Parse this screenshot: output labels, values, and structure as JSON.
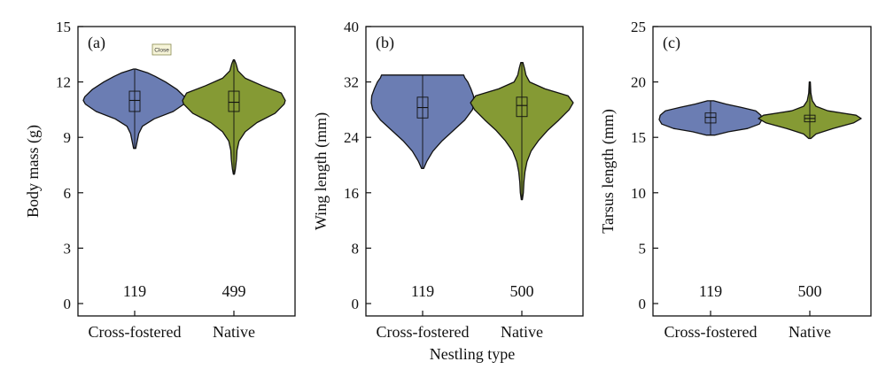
{
  "colors": {
    "cross_fostered": "#6b7db3",
    "native": "#859a34",
    "stroke": "#111111"
  },
  "xlabel": "Nestling type",
  "close_button": {
    "label": "Close"
  },
  "chart_data": [
    {
      "type": "violin",
      "panel_label": "(a)",
      "ylabel": "Body mass (g)",
      "ylim": [
        0,
        15
      ],
      "yticks": [
        "0",
        "3",
        "6",
        "9",
        "12",
        "15"
      ],
      "categories": [
        "Cross-fostered",
        "Native"
      ],
      "n": [
        "119",
        "499"
      ],
      "series": [
        {
          "name": "Cross-fostered",
          "min": 8.4,
          "q1": 10.4,
          "median": 11.0,
          "q3": 11.5,
          "max": 12.7,
          "density": [
            [
              8.4,
              0.02
            ],
            [
              8.8,
              0.05
            ],
            [
              9.2,
              0.08
            ],
            [
              9.6,
              0.15
            ],
            [
              10.0,
              0.38
            ],
            [
              10.4,
              0.75
            ],
            [
              10.8,
              0.96
            ],
            [
              11.0,
              1.0
            ],
            [
              11.2,
              0.97
            ],
            [
              11.6,
              0.82
            ],
            [
              12.0,
              0.6
            ],
            [
              12.3,
              0.4
            ],
            [
              12.5,
              0.25
            ],
            [
              12.7,
              0.02
            ]
          ]
        },
        {
          "name": "Native",
          "min": 7.0,
          "q1": 10.4,
          "median": 10.9,
          "q3": 11.5,
          "max": 13.2,
          "density": [
            [
              7.0,
              0.01
            ],
            [
              7.3,
              0.03
            ],
            [
              7.8,
              0.05
            ],
            [
              8.3,
              0.06
            ],
            [
              8.8,
              0.1
            ],
            [
              9.3,
              0.22
            ],
            [
              9.8,
              0.45
            ],
            [
              10.3,
              0.8
            ],
            [
              10.8,
              0.98
            ],
            [
              11.0,
              1.0
            ],
            [
              11.4,
              0.92
            ],
            [
              11.8,
              0.55
            ],
            [
              12.2,
              0.22
            ],
            [
              12.6,
              0.08
            ],
            [
              13.0,
              0.04
            ],
            [
              13.2,
              0.01
            ]
          ]
        }
      ]
    },
    {
      "type": "violin",
      "panel_label": "(b)",
      "ylabel": "Wing length (mm)",
      "ylim": [
        0,
        40
      ],
      "yticks": [
        "0",
        "8",
        "16",
        "24",
        "32",
        "40"
      ],
      "categories": [
        "Cross-fostered",
        "Native"
      ],
      "n": [
        "119",
        "500"
      ],
      "series": [
        {
          "name": "Cross-fostered",
          "min": 19.5,
          "q1": 26.8,
          "median": 28.3,
          "q3": 29.8,
          "max": 33.0,
          "density": [
            [
              19.5,
              0.02
            ],
            [
              20.5,
              0.08
            ],
            [
              22.0,
              0.2
            ],
            [
              23.5,
              0.38
            ],
            [
              25.0,
              0.6
            ],
            [
              26.5,
              0.82
            ],
            [
              28.0,
              0.97
            ],
            [
              29.0,
              1.0
            ],
            [
              30.0,
              0.99
            ],
            [
              31.0,
              0.94
            ],
            [
              32.0,
              0.88
            ],
            [
              32.6,
              0.82
            ],
            [
              33.0,
              0.8
            ]
          ]
        },
        {
          "name": "Native",
          "min": 15.0,
          "q1": 27.0,
          "median": 28.6,
          "q3": 29.8,
          "max": 34.8,
          "density": [
            [
              15.0,
              0.01
            ],
            [
              16.0,
              0.03
            ],
            [
              17.5,
              0.04
            ],
            [
              19.0,
              0.06
            ],
            [
              20.5,
              0.1
            ],
            [
              22.0,
              0.18
            ],
            [
              23.5,
              0.32
            ],
            [
              25.0,
              0.5
            ],
            [
              26.5,
              0.72
            ],
            [
              28.0,
              0.92
            ],
            [
              29.0,
              1.0
            ],
            [
              30.0,
              0.9
            ],
            [
              31.0,
              0.45
            ],
            [
              32.0,
              0.15
            ],
            [
              33.0,
              0.08
            ],
            [
              34.0,
              0.05
            ],
            [
              34.8,
              0.02
            ]
          ]
        }
      ]
    },
    {
      "type": "violin",
      "panel_label": "(c)",
      "ylabel": "Tarsus length (mm)",
      "ylim": [
        0,
        25
      ],
      "yticks": [
        "0",
        "5",
        "10",
        "15",
        "20",
        "25"
      ],
      "categories": [
        "Cross-fostered",
        "Native"
      ],
      "n": [
        "119",
        "500"
      ],
      "series": [
        {
          "name": "Cross-fostered",
          "min": 15.2,
          "q1": 16.3,
          "median": 16.8,
          "q3": 17.2,
          "max": 18.3,
          "density": [
            [
              15.2,
              0.08
            ],
            [
              15.5,
              0.35
            ],
            [
              15.8,
              0.72
            ],
            [
              16.2,
              0.95
            ],
            [
              16.6,
              1.0
            ],
            [
              17.0,
              0.98
            ],
            [
              17.4,
              0.88
            ],
            [
              17.7,
              0.6
            ],
            [
              18.0,
              0.3
            ],
            [
              18.3,
              0.06
            ]
          ]
        },
        {
          "name": "Native",
          "min": 14.9,
          "q1": 16.4,
          "median": 16.7,
          "q3": 17.0,
          "max": 20.0,
          "density": [
            [
              14.9,
              0.02
            ],
            [
              15.3,
              0.12
            ],
            [
              15.8,
              0.45
            ],
            [
              16.3,
              0.85
            ],
            [
              16.7,
              1.0
            ],
            [
              17.0,
              0.9
            ],
            [
              17.4,
              0.35
            ],
            [
              17.8,
              0.12
            ],
            [
              18.3,
              0.05
            ],
            [
              19.0,
              0.02
            ],
            [
              20.0,
              0.01
            ]
          ]
        }
      ]
    }
  ]
}
